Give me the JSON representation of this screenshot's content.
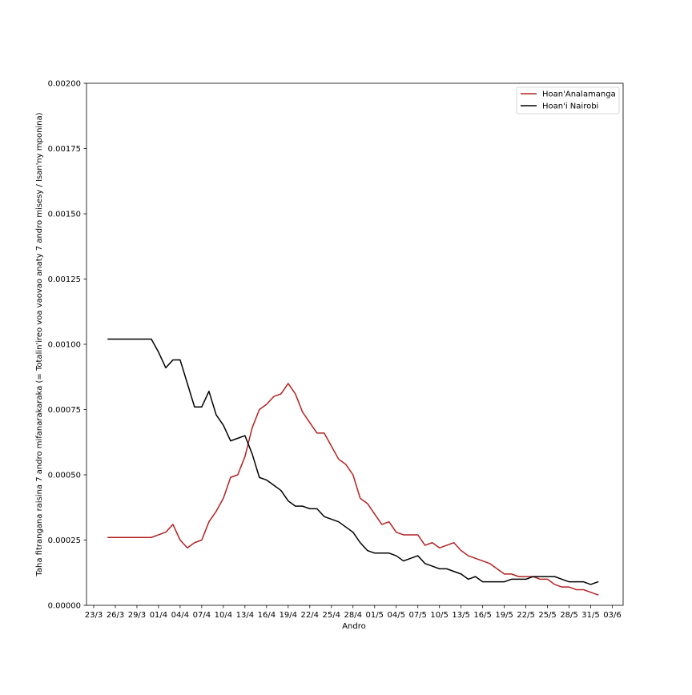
{
  "chart_data": {
    "type": "line",
    "title": "",
    "xlabel": "Andro",
    "ylabel": "Taha fitrangana raisina 7 andro mifanarakaraka (= Totalin'ireo voa vaovao anaty 7 andro misesy / Isan'ny mponina)",
    "ylim": [
      0,
      0.002
    ],
    "y_ticks": [
      "0.00000",
      "0.00025",
      "0.00050",
      "0.00075",
      "0.00100",
      "0.00125",
      "0.00150",
      "0.00175",
      "0.00200"
    ],
    "y_tick_values": [
      0,
      0.00025,
      0.0005,
      0.00075,
      0.001,
      0.00125,
      0.0015,
      0.00175,
      0.002
    ],
    "x_start_date": "23/3",
    "xlim_days": [
      -1,
      73.5
    ],
    "x_ticks": [
      "23/3",
      "26/3",
      "29/3",
      "01/4",
      "04/4",
      "07/4",
      "10/4",
      "13/4",
      "16/4",
      "19/4",
      "22/4",
      "25/4",
      "28/4",
      "01/5",
      "04/5",
      "07/5",
      "10/5",
      "13/5",
      "16/5",
      "19/5",
      "22/5",
      "25/5",
      "28/5",
      "31/5",
      "03/6"
    ],
    "x_tick_days": [
      0,
      3,
      6,
      9,
      12,
      15,
      18,
      21,
      24,
      27,
      30,
      33,
      36,
      39,
      42,
      45,
      48,
      51,
      54,
      57,
      60,
      63,
      66,
      69,
      72
    ],
    "legend_position": "top-right",
    "grid": false,
    "series": [
      {
        "name": "Hoan'Analamanga",
        "color": "#b22222",
        "x": [
          2,
          8,
          9,
          10,
          11,
          12,
          13,
          14,
          15,
          16,
          17,
          18,
          19,
          20,
          21,
          22,
          23,
          24,
          25,
          26,
          27,
          28,
          29,
          30,
          31,
          32,
          33,
          34,
          35,
          36,
          37,
          38,
          39,
          40,
          41,
          42,
          43,
          44,
          45,
          46,
          47,
          48,
          49,
          50,
          51,
          52,
          53,
          54,
          55,
          56,
          57,
          58,
          59,
          60,
          61,
          62,
          63,
          64,
          65,
          66,
          67,
          68,
          69,
          70
        ],
        "values": [
          0.00026,
          0.00026,
          0.00027,
          0.00028,
          0.00031,
          0.00025,
          0.00022,
          0.00024,
          0.00025,
          0.00032,
          0.00036,
          0.00041,
          0.00049,
          0.0005,
          0.00057,
          0.00068,
          0.00075,
          0.00077,
          0.0008,
          0.00081,
          0.00085,
          0.00081,
          0.00074,
          0.0007,
          0.00066,
          0.00066,
          0.00061,
          0.00056,
          0.00054,
          0.0005,
          0.00041,
          0.00039,
          0.00035,
          0.00031,
          0.00032,
          0.00028,
          0.00027,
          0.00027,
          0.00027,
          0.00023,
          0.00024,
          0.00022,
          0.00023,
          0.00024,
          0.00021,
          0.00019,
          0.00018,
          0.00017,
          0.00016,
          0.00014,
          0.00012,
          0.00012,
          0.00011,
          0.00011,
          0.00011,
          0.0001,
          0.0001,
          8e-05,
          7e-05,
          7e-05,
          6e-05,
          6e-05,
          5e-05,
          4e-05
        ]
      },
      {
        "name": "Hoan'i Nairobi",
        "color": "#000000",
        "x": [
          2,
          8,
          9,
          10,
          11,
          12,
          13,
          14,
          15,
          16,
          17,
          18,
          19,
          20,
          21,
          22,
          23,
          24,
          25,
          26,
          27,
          28,
          29,
          30,
          31,
          32,
          33,
          34,
          35,
          36,
          37,
          38,
          39,
          40,
          41,
          42,
          43,
          44,
          45,
          46,
          47,
          48,
          49,
          50,
          51,
          52,
          53,
          54,
          55,
          56,
          57,
          58,
          59,
          60,
          61,
          62,
          63,
          64,
          65,
          66,
          67,
          68,
          69,
          70
        ],
        "values": [
          0.00102,
          0.00102,
          0.00097,
          0.00091,
          0.00094,
          0.00094,
          0.00085,
          0.00076,
          0.00076,
          0.00082,
          0.00073,
          0.00069,
          0.00063,
          0.00064,
          0.00065,
          0.00058,
          0.00049,
          0.00048,
          0.00046,
          0.00044,
          0.0004,
          0.00038,
          0.00038,
          0.00037,
          0.00037,
          0.00034,
          0.00033,
          0.00032,
          0.0003,
          0.00028,
          0.00024,
          0.00021,
          0.0002,
          0.0002,
          0.0002,
          0.00019,
          0.00017,
          0.00018,
          0.00019,
          0.00016,
          0.00015,
          0.00014,
          0.00014,
          0.00013,
          0.00012,
          0.0001,
          0.00011,
          9e-05,
          9e-05,
          9e-05,
          9e-05,
          0.0001,
          0.0001,
          0.0001,
          0.00011,
          0.00011,
          0.00011,
          0.00011,
          0.0001,
          9e-05,
          9e-05,
          9e-05,
          8e-05,
          9e-05
        ]
      }
    ]
  }
}
